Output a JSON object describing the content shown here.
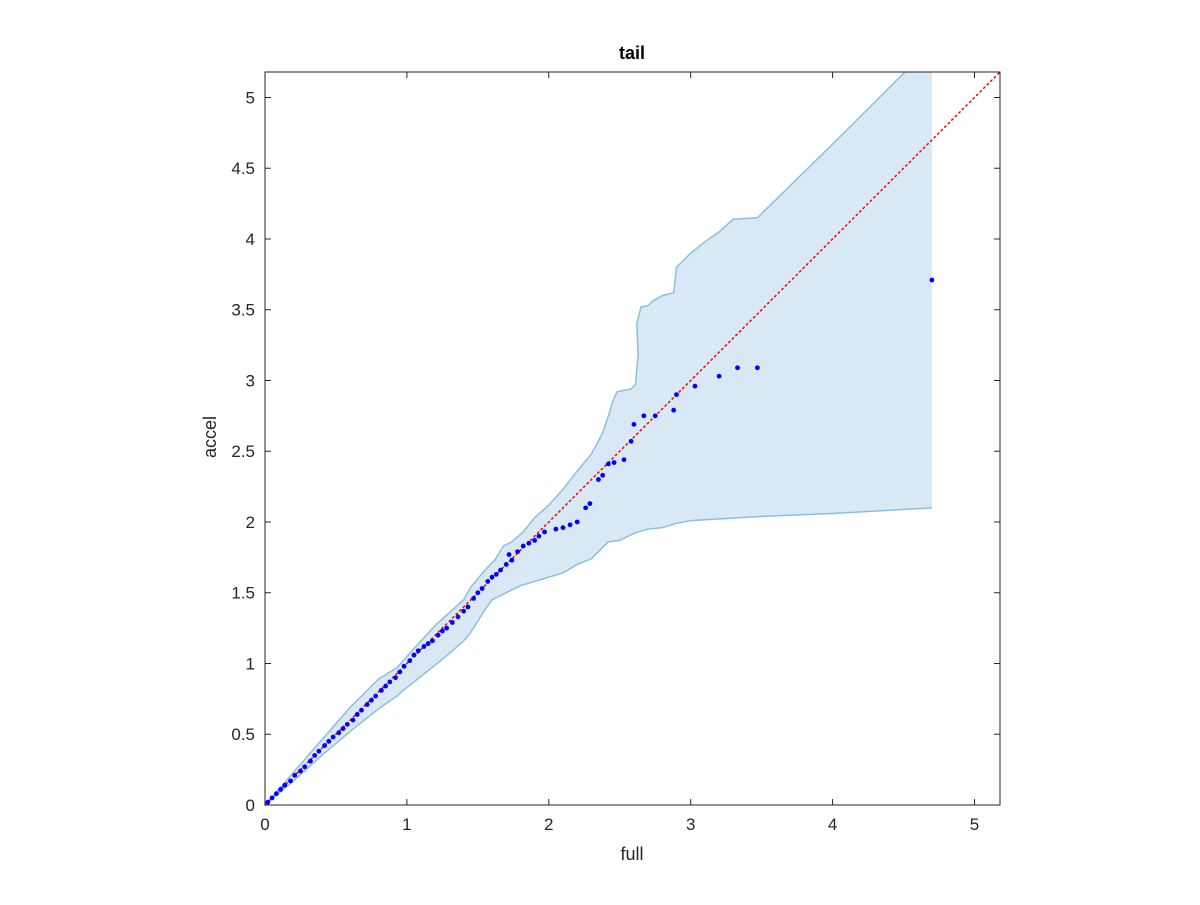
{
  "chart_data": {
    "type": "scatter",
    "title": "tail",
    "xlabel": "full",
    "ylabel": "accel",
    "xlim": [
      0,
      5.18
    ],
    "ylim": [
      0,
      5.18
    ],
    "xticks": [
      0,
      1,
      2,
      3,
      4,
      5
    ],
    "xtick_labels": [
      "0",
      "1",
      "2",
      "3",
      "4",
      "5"
    ],
    "yticks": [
      0,
      0.5,
      1,
      1.5,
      2,
      2.5,
      3,
      3.5,
      4,
      4.5,
      5
    ],
    "ytick_labels": [
      "0",
      "0.5",
      "1",
      "1.5",
      "2",
      "2.5",
      "3",
      "3.5",
      "4",
      "4.5",
      "5"
    ],
    "grid": false,
    "colors": {
      "points": "#0000ff",
      "reference_line": "#ff0000",
      "band_fill": "#d8e8f4",
      "band_edge": "#8dbfdd",
      "axes": "#262626"
    },
    "reference_line": {
      "style": "dotted",
      "points": [
        [
          0,
          0
        ],
        [
          5.18,
          5.18
        ]
      ]
    },
    "confidence_band": {
      "upper": [
        [
          0,
          0
        ],
        [
          0.2,
          0.23
        ],
        [
          0.4,
          0.46
        ],
        [
          0.6,
          0.69
        ],
        [
          0.8,
          0.89
        ],
        [
          0.93,
          0.97
        ],
        [
          1.0,
          1.05
        ],
        [
          1.1,
          1.16
        ],
        [
          1.2,
          1.27
        ],
        [
          1.3,
          1.36
        ],
        [
          1.4,
          1.45
        ],
        [
          1.45,
          1.54
        ],
        [
          1.5,
          1.6
        ],
        [
          1.55,
          1.66
        ],
        [
          1.62,
          1.73
        ],
        [
          1.68,
          1.83
        ],
        [
          1.74,
          1.86
        ],
        [
          1.82,
          1.93
        ],
        [
          1.9,
          2.03
        ],
        [
          2.0,
          2.12
        ],
        [
          2.1,
          2.23
        ],
        [
          2.2,
          2.36
        ],
        [
          2.3,
          2.48
        ],
        [
          2.38,
          2.63
        ],
        [
          2.42,
          2.75
        ],
        [
          2.45,
          2.85
        ],
        [
          2.48,
          2.92
        ],
        [
          2.58,
          2.94
        ],
        [
          2.61,
          2.97
        ],
        [
          2.63,
          3.18
        ],
        [
          2.62,
          3.4
        ],
        [
          2.65,
          3.52
        ],
        [
          2.7,
          3.53
        ],
        [
          2.73,
          3.56
        ],
        [
          2.8,
          3.6
        ],
        [
          2.88,
          3.62
        ],
        [
          2.9,
          3.8
        ],
        [
          3.0,
          3.9
        ],
        [
          3.1,
          3.98
        ],
        [
          3.2,
          4.05
        ],
        [
          3.3,
          4.14
        ],
        [
          3.47,
          4.15
        ],
        [
          4.0,
          4.67
        ],
        [
          4.51,
          5.18
        ]
      ],
      "lower": [
        [
          0,
          0
        ],
        [
          0.2,
          0.17
        ],
        [
          0.4,
          0.35
        ],
        [
          0.6,
          0.52
        ],
        [
          0.8,
          0.68
        ],
        [
          0.93,
          0.77
        ],
        [
          1.0,
          0.83
        ],
        [
          1.1,
          0.91
        ],
        [
          1.2,
          0.99
        ],
        [
          1.3,
          1.07
        ],
        [
          1.4,
          1.16
        ],
        [
          1.45,
          1.22
        ],
        [
          1.5,
          1.3
        ],
        [
          1.55,
          1.38
        ],
        [
          1.6,
          1.45
        ],
        [
          1.7,
          1.5
        ],
        [
          1.8,
          1.55
        ],
        [
          1.9,
          1.58
        ],
        [
          2.0,
          1.61
        ],
        [
          2.1,
          1.64
        ],
        [
          2.2,
          1.7
        ],
        [
          2.3,
          1.74
        ],
        [
          2.38,
          1.82
        ],
        [
          2.42,
          1.86
        ],
        [
          2.5,
          1.87
        ],
        [
          2.6,
          1.92
        ],
        [
          2.7,
          1.95
        ],
        [
          2.8,
          1.96
        ],
        [
          2.9,
          1.99
        ],
        [
          3.0,
          2.01
        ],
        [
          3.5,
          2.04
        ],
        [
          4.0,
          2.06
        ],
        [
          4.7,
          2.1
        ]
      ],
      "x_end": 4.7
    },
    "series": [
      {
        "values": [
          [
            0.02,
            0.02
          ],
          [
            0.05,
            0.05
          ],
          [
            0.08,
            0.08
          ],
          [
            0.11,
            0.11
          ],
          [
            0.14,
            0.14
          ],
          [
            0.18,
            0.17
          ],
          [
            0.21,
            0.21
          ],
          [
            0.25,
            0.24
          ],
          [
            0.28,
            0.27
          ],
          [
            0.32,
            0.31
          ],
          [
            0.35,
            0.35
          ],
          [
            0.38,
            0.38
          ],
          [
            0.42,
            0.42
          ],
          [
            0.45,
            0.45
          ],
          [
            0.48,
            0.48
          ],
          [
            0.52,
            0.51
          ],
          [
            0.55,
            0.54
          ],
          [
            0.58,
            0.57
          ],
          [
            0.62,
            0.6
          ],
          [
            0.65,
            0.64
          ],
          [
            0.68,
            0.67
          ],
          [
            0.72,
            0.71
          ],
          [
            0.75,
            0.74
          ],
          [
            0.78,
            0.77
          ],
          [
            0.82,
            0.81
          ],
          [
            0.85,
            0.84
          ],
          [
            0.88,
            0.87
          ],
          [
            0.92,
            0.9
          ],
          [
            0.95,
            0.94
          ],
          [
            0.98,
            0.98
          ],
          [
            1.02,
            1.02
          ],
          [
            1.05,
            1.06
          ],
          [
            1.08,
            1.09
          ],
          [
            1.12,
            1.12
          ],
          [
            1.15,
            1.14
          ],
          [
            1.18,
            1.16
          ],
          [
            1.22,
            1.2
          ],
          [
            1.25,
            1.23
          ],
          [
            1.28,
            1.25
          ],
          [
            1.32,
            1.29
          ],
          [
            1.36,
            1.33
          ],
          [
            1.4,
            1.37
          ],
          [
            1.43,
            1.4
          ],
          [
            1.47,
            1.46
          ],
          [
            1.5,
            1.5
          ],
          [
            1.53,
            1.53
          ],
          [
            1.57,
            1.58
          ],
          [
            1.6,
            1.61
          ],
          [
            1.63,
            1.63
          ],
          [
            1.66,
            1.66
          ],
          [
            1.7,
            1.7
          ],
          [
            1.72,
            1.77
          ],
          [
            1.74,
            1.73
          ],
          [
            1.78,
            1.79
          ],
          [
            1.82,
            1.83
          ],
          [
            1.86,
            1.85
          ],
          [
            1.9,
            1.87
          ],
          [
            1.93,
            1.9
          ],
          [
            1.97,
            1.93
          ],
          [
            2.05,
            1.95
          ],
          [
            2.1,
            1.96
          ],
          [
            2.15,
            1.98
          ],
          [
            2.2,
            2.0
          ],
          [
            2.26,
            2.1
          ],
          [
            2.29,
            2.13
          ],
          [
            2.35,
            2.3
          ],
          [
            2.38,
            2.33
          ],
          [
            2.42,
            2.41
          ],
          [
            2.46,
            2.42
          ],
          [
            2.53,
            2.44
          ],
          [
            2.58,
            2.57
          ],
          [
            2.6,
            2.69
          ],
          [
            2.67,
            2.75
          ],
          [
            2.75,
            2.75
          ],
          [
            2.88,
            2.79
          ],
          [
            2.9,
            2.9
          ],
          [
            3.03,
            2.96
          ],
          [
            3.2,
            3.03
          ],
          [
            3.33,
            3.09
          ],
          [
            3.47,
            3.09
          ],
          [
            4.7,
            3.71
          ]
        ]
      }
    ]
  }
}
